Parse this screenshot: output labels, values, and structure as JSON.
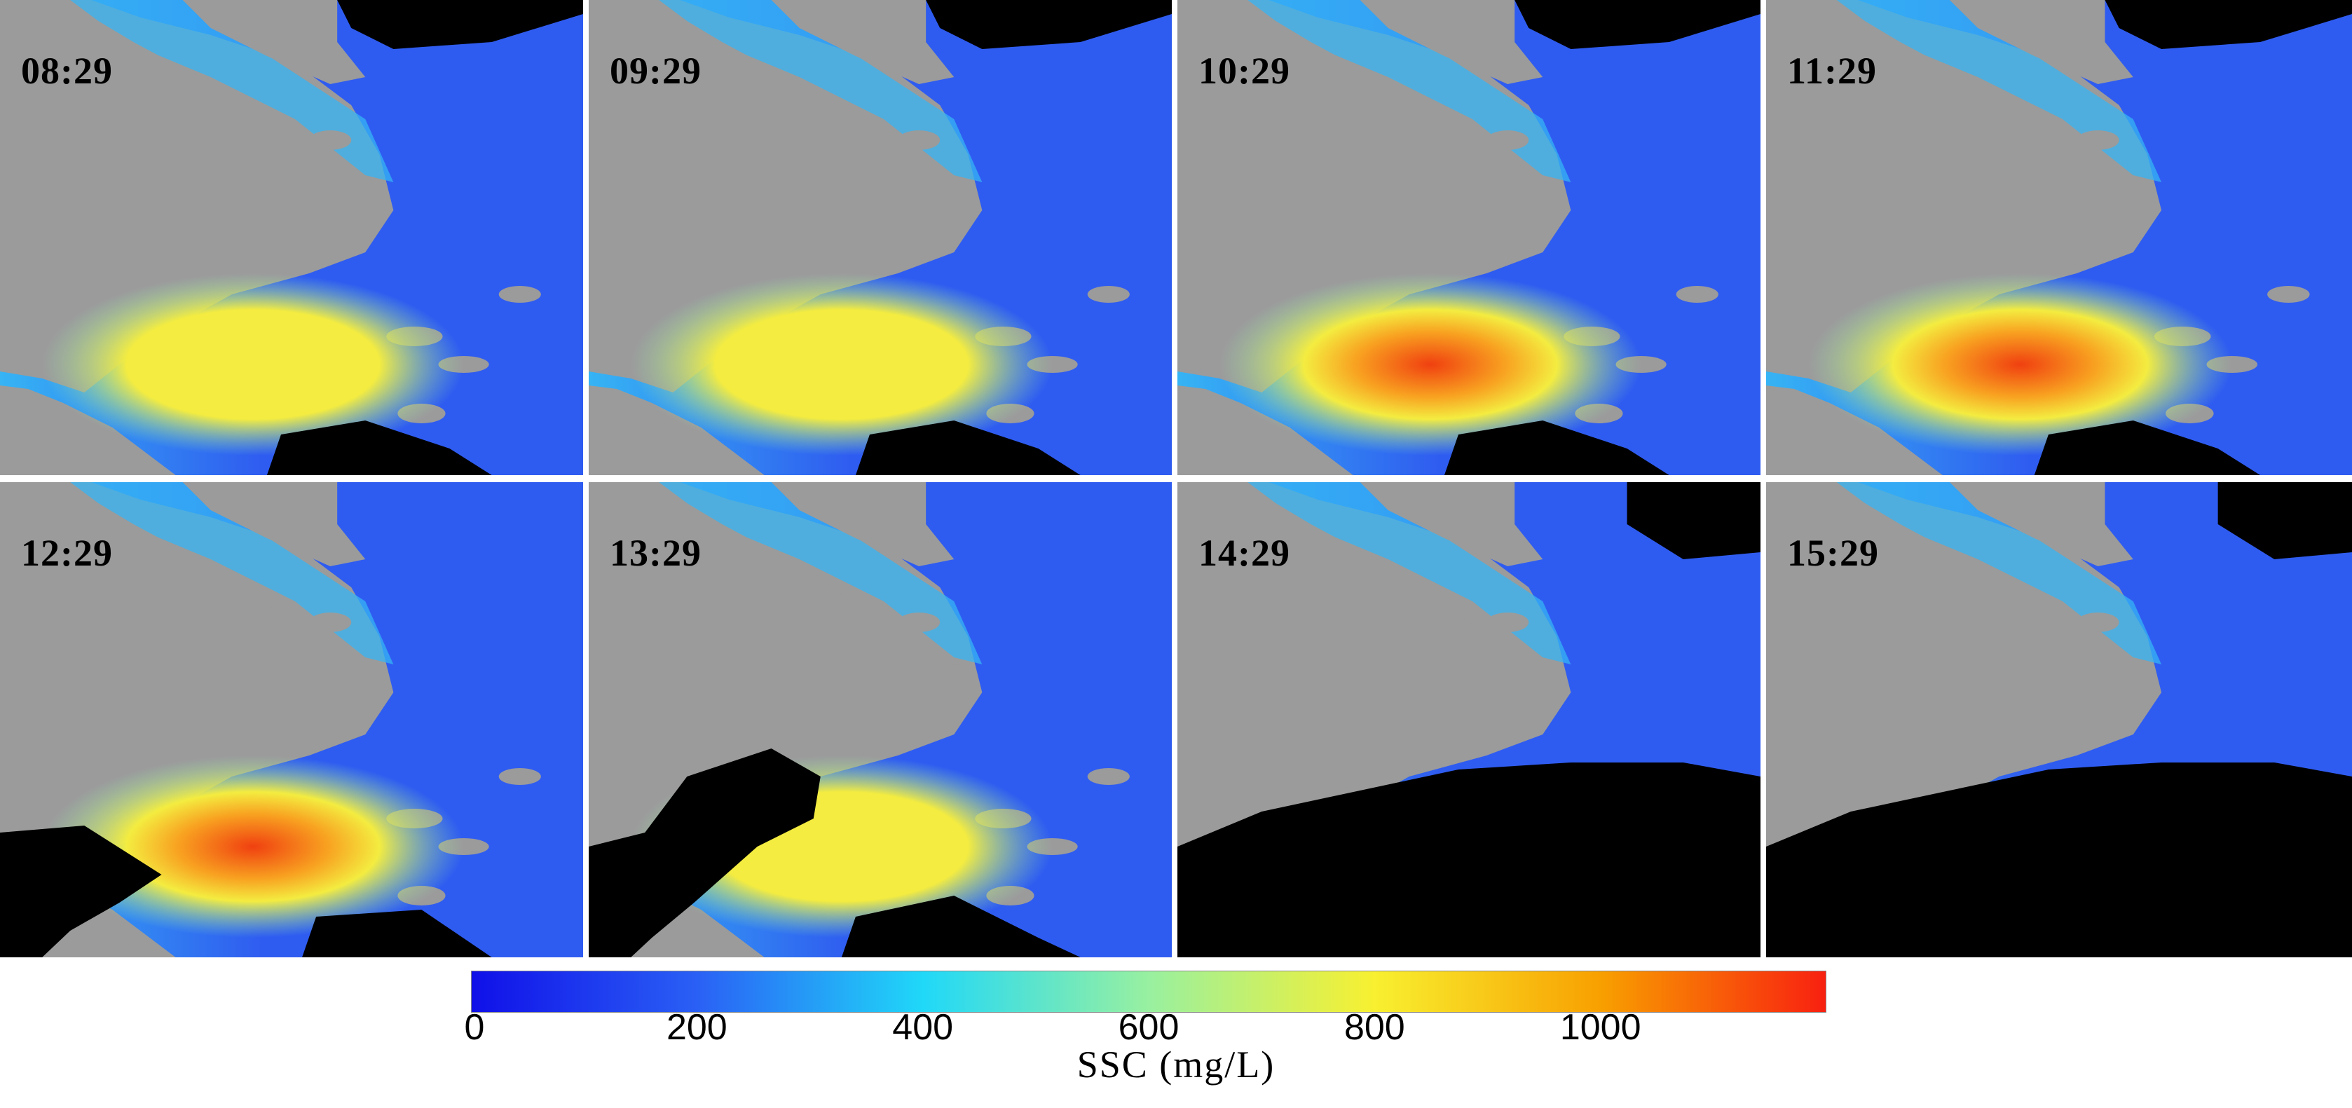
{
  "panels": [
    {
      "time": "08:29",
      "plume": "yellow",
      "mask": "light"
    },
    {
      "time": "09:29",
      "plume": "yellow",
      "mask": "light"
    },
    {
      "time": "10:29",
      "plume": "red",
      "mask": "light"
    },
    {
      "time": "11:29",
      "plume": "red",
      "mask": "light"
    },
    {
      "time": "12:29",
      "plume": "red",
      "mask": "left"
    },
    {
      "time": "13:29",
      "plume": "yellow",
      "mask": "left-heavy"
    },
    {
      "time": "14:29",
      "plume": "none",
      "mask": "bottom-heavy"
    },
    {
      "time": "15:29",
      "plume": "none",
      "mask": "bottom-heavy"
    }
  ],
  "colorbar": {
    "ticks": [
      "0",
      "200",
      "400",
      "600",
      "800",
      "1000"
    ],
    "tick_values": [
      0,
      200,
      400,
      600,
      800,
      1000
    ],
    "max_value": 1200,
    "label": "SSC (mg/L)",
    "colors": [
      "#1010e8",
      "#2a60f5",
      "#20d8f8",
      "#98f0a0",
      "#f8f030",
      "#f8a000",
      "#f82010"
    ]
  },
  "map_colors": {
    "land": "#9b9b9b",
    "nodata": "#000000",
    "water_low": "#2f5cf0",
    "water_mid": "#36b4f4",
    "water_high": "#8fe8b0",
    "plume_yellow": "#f4ec40",
    "plume_orange": "#f8a020",
    "plume_red": "#f04010"
  }
}
